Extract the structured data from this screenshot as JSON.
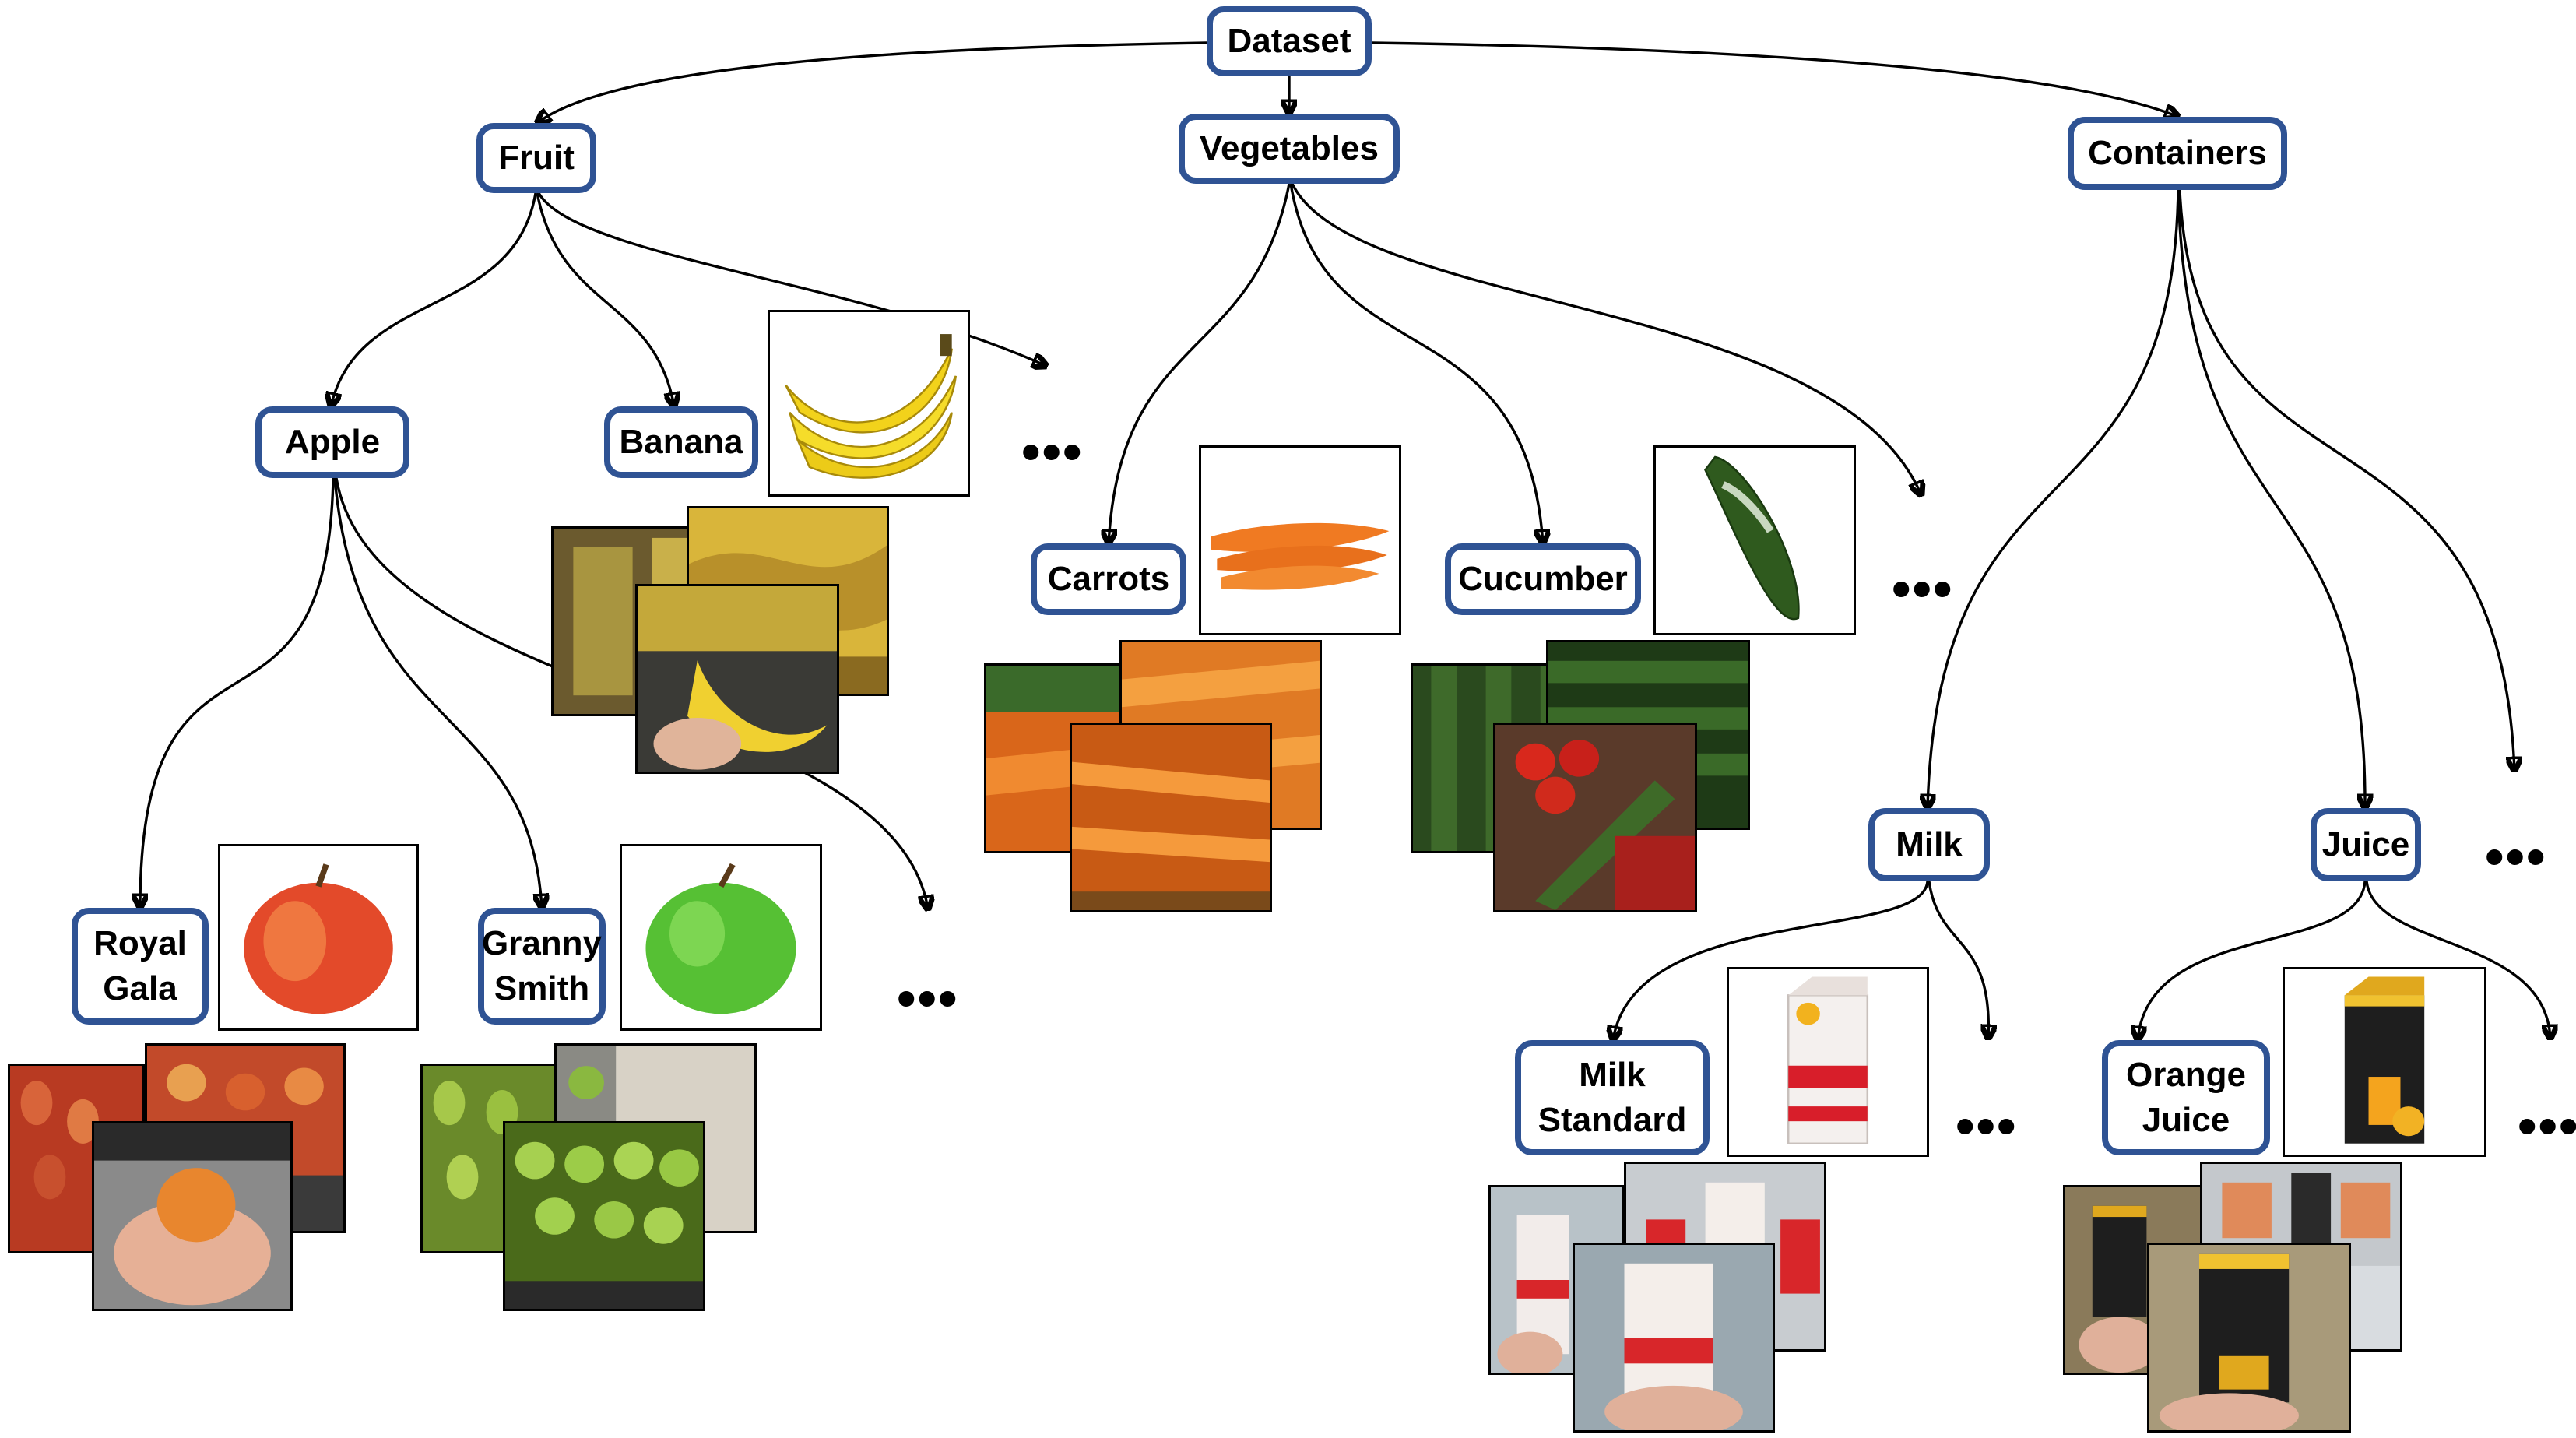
{
  "nodes": {
    "dataset": "Dataset",
    "fruit": "Fruit",
    "vegetables": "Vegetables",
    "containers": "Containers",
    "apple": "Apple",
    "banana": "Banana",
    "carrots": "Carrots",
    "cucumber": "Cucumber",
    "milk": "Milk",
    "juice": "Juice",
    "royal_gala": "Royal\nGala",
    "granny_smith": "Granny\nSmith",
    "milk_standard": "Milk\nStandard",
    "orange_juice": "Orange\nJuice"
  },
  "ellipsis": "•••",
  "colors": {
    "node_border": "#2f5394",
    "edge": "#000000",
    "background": "#ffffff"
  },
  "images": {
    "banana": "banana-photo",
    "carrots": "carrots-photo",
    "cucumber": "cucumber-photo",
    "royal_gala": "red-apple-photo",
    "granny_smith": "green-apple-photo",
    "milk_standard": "milk-carton-photo",
    "orange_juice": "juice-carton-photo"
  }
}
